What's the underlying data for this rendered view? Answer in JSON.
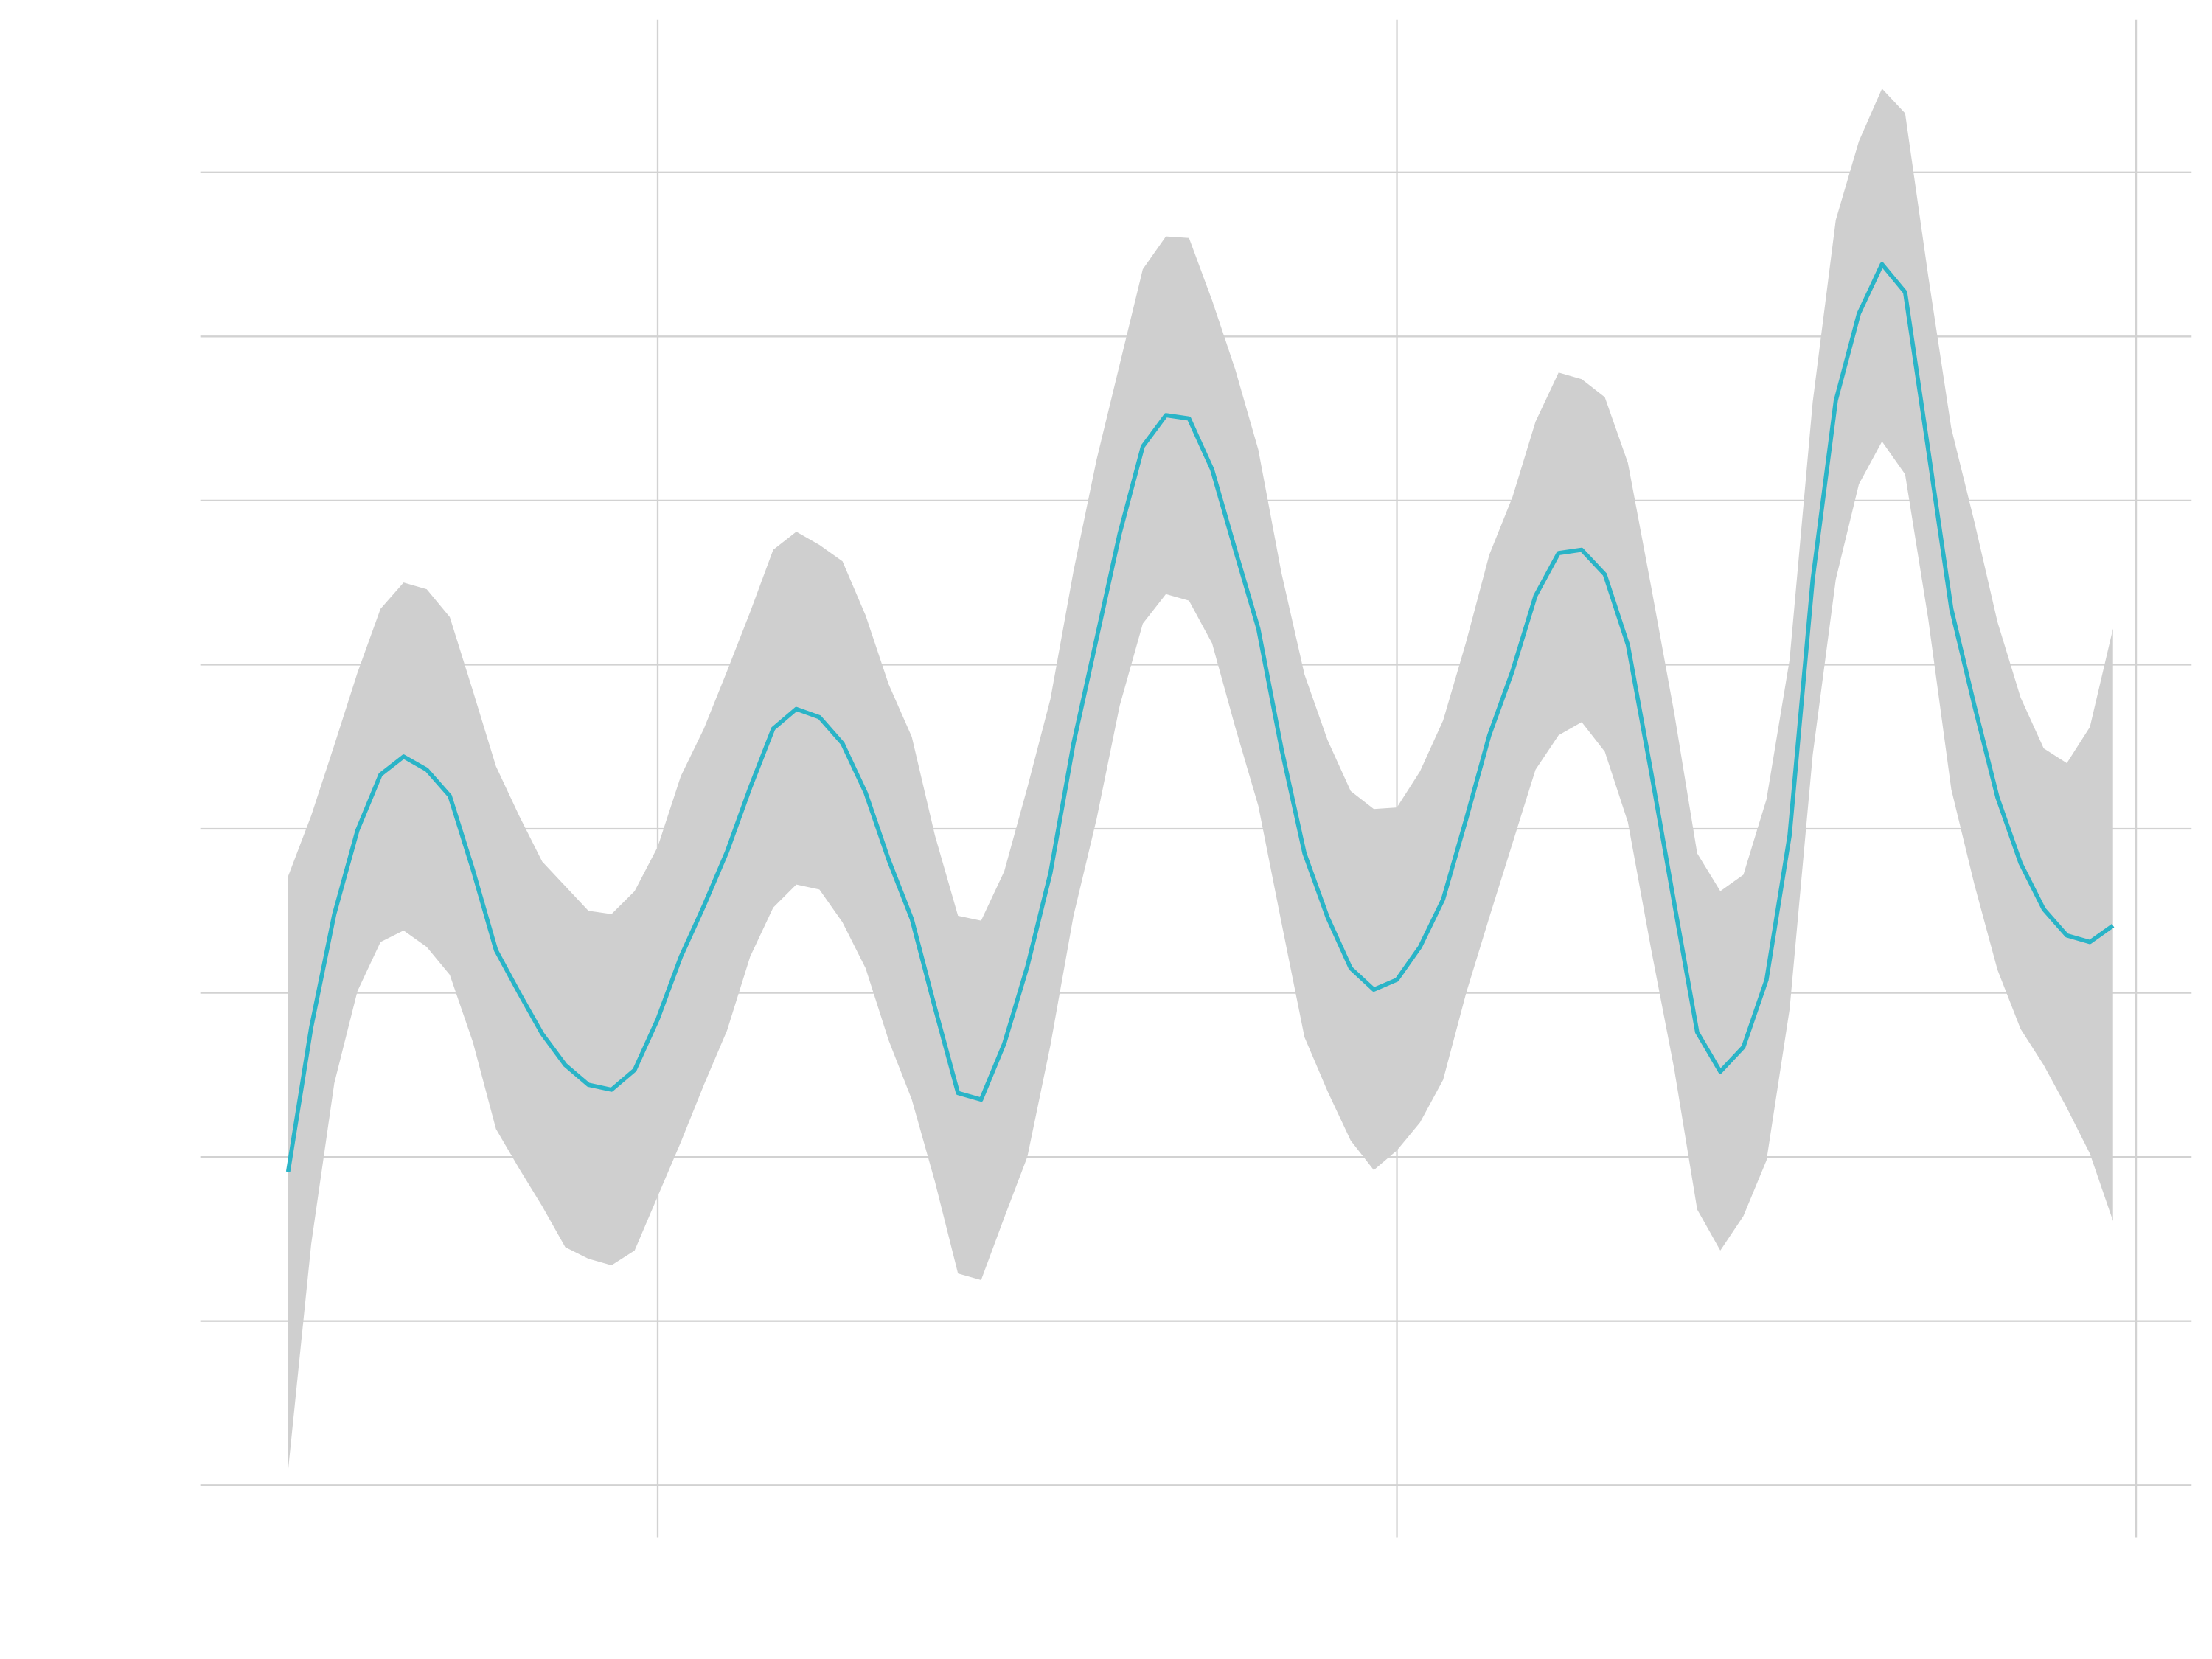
{
  "chart_data": {
    "type": "line",
    "color": "#2ab4c7",
    "band_color": "#cfcfcf",
    "grid": true,
    "xlim": [
      -3.8,
      82.4
    ],
    "xticks": [
      16,
      48,
      80
    ],
    "ylim": [
      -0.32,
      8.93
    ],
    "yticks": [
      0,
      1,
      2,
      3,
      4,
      5,
      6,
      7,
      8
    ],
    "x": [
      0,
      1,
      2,
      3,
      4,
      5,
      6,
      7,
      8,
      9,
      10,
      11,
      12,
      13,
      14,
      15,
      16,
      17,
      18,
      19,
      20,
      21,
      22,
      23,
      24,
      25,
      26,
      27,
      28,
      29,
      30,
      31,
      32,
      33,
      34,
      35,
      36,
      37,
      38,
      39,
      40,
      41,
      42,
      43,
      44,
      45,
      46,
      47,
      48,
      49,
      50,
      51,
      52,
      53,
      54,
      55,
      56,
      57,
      58,
      59,
      60,
      61,
      62,
      63,
      64,
      65,
      66,
      67,
      68,
      69,
      70,
      71,
      72,
      73,
      74,
      75,
      76,
      77,
      78,
      79
    ],
    "values": [
      1.91,
      2.79,
      3.48,
      3.99,
      4.33,
      4.44,
      4.36,
      4.2,
      3.75,
      3.26,
      3.0,
      2.75,
      2.56,
      2.44,
      2.41,
      2.53,
      2.84,
      3.22,
      3.53,
      3.86,
      4.25,
      4.61,
      4.73,
      4.68,
      4.52,
      4.22,
      3.81,
      3.45,
      2.91,
      2.39,
      2.35,
      2.69,
      3.16,
      3.73,
      4.52,
      5.16,
      5.8,
      6.33,
      6.52,
      6.5,
      6.19,
      5.7,
      5.22,
      4.49,
      3.85,
      3.46,
      3.15,
      3.02,
      3.08,
      3.28,
      3.57,
      4.06,
      4.57,
      4.96,
      5.42,
      5.68,
      5.7,
      5.55,
      5.12,
      4.35,
      3.55,
      2.76,
      2.52,
      2.67,
      3.08,
      3.96,
      5.52,
      6.61,
      7.14,
      7.44,
      7.27,
      6.31,
      5.34,
      4.75,
      4.19,
      3.79,
      3.51,
      3.35,
      3.31,
      3.41
    ],
    "upper": [
      3.71,
      4.08,
      4.51,
      4.95,
      5.34,
      5.5,
      5.46,
      5.29,
      4.84,
      4.38,
      4.08,
      3.8,
      3.65,
      3.5,
      3.48,
      3.62,
      3.89,
      4.32,
      4.61,
      4.96,
      5.32,
      5.7,
      5.81,
      5.73,
      5.63,
      5.3,
      4.88,
      4.56,
      3.96,
      3.47,
      3.44,
      3.74,
      4.25,
      4.79,
      5.57,
      6.25,
      6.83,
      7.41,
      7.61,
      7.6,
      7.22,
      6.8,
      6.31,
      5.56,
      4.94,
      4.54,
      4.23,
      4.12,
      4.13,
      4.35,
      4.66,
      5.14,
      5.67,
      6.02,
      6.48,
      6.78,
      6.74,
      6.63,
      6.23,
      5.48,
      4.71,
      3.85,
      3.62,
      3.72,
      4.18,
      5.03,
      6.6,
      7.71,
      8.19,
      8.51,
      8.36,
      7.37,
      6.44,
      5.87,
      5.26,
      4.8,
      4.49,
      4.4,
      4.62,
      5.22
    ],
    "lower": [
      0.09,
      1.47,
      2.45,
      3.01,
      3.31,
      3.38,
      3.28,
      3.11,
      2.7,
      2.17,
      1.93,
      1.7,
      1.45,
      1.38,
      1.34,
      1.43,
      1.76,
      2.09,
      2.44,
      2.77,
      3.22,
      3.52,
      3.66,
      3.63,
      3.43,
      3.15,
      2.71,
      2.35,
      1.85,
      1.29,
      1.25,
      1.63,
      2.0,
      2.68,
      3.47,
      4.06,
      4.75,
      5.25,
      5.43,
      5.39,
      5.13,
      4.62,
      4.14,
      3.43,
      2.73,
      2.4,
      2.1,
      1.92,
      2.04,
      2.21,
      2.47,
      3.0,
      3.46,
      3.91,
      4.36,
      4.57,
      4.65,
      4.47,
      4.04,
      3.27,
      2.54,
      1.68,
      1.43,
      1.64,
      1.98,
      2.9,
      4.45,
      5.52,
      6.1,
      6.36,
      6.16,
      5.28,
      4.24,
      3.66,
      3.14,
      2.78,
      2.56,
      2.3,
      2.02,
      1.61
    ]
  }
}
